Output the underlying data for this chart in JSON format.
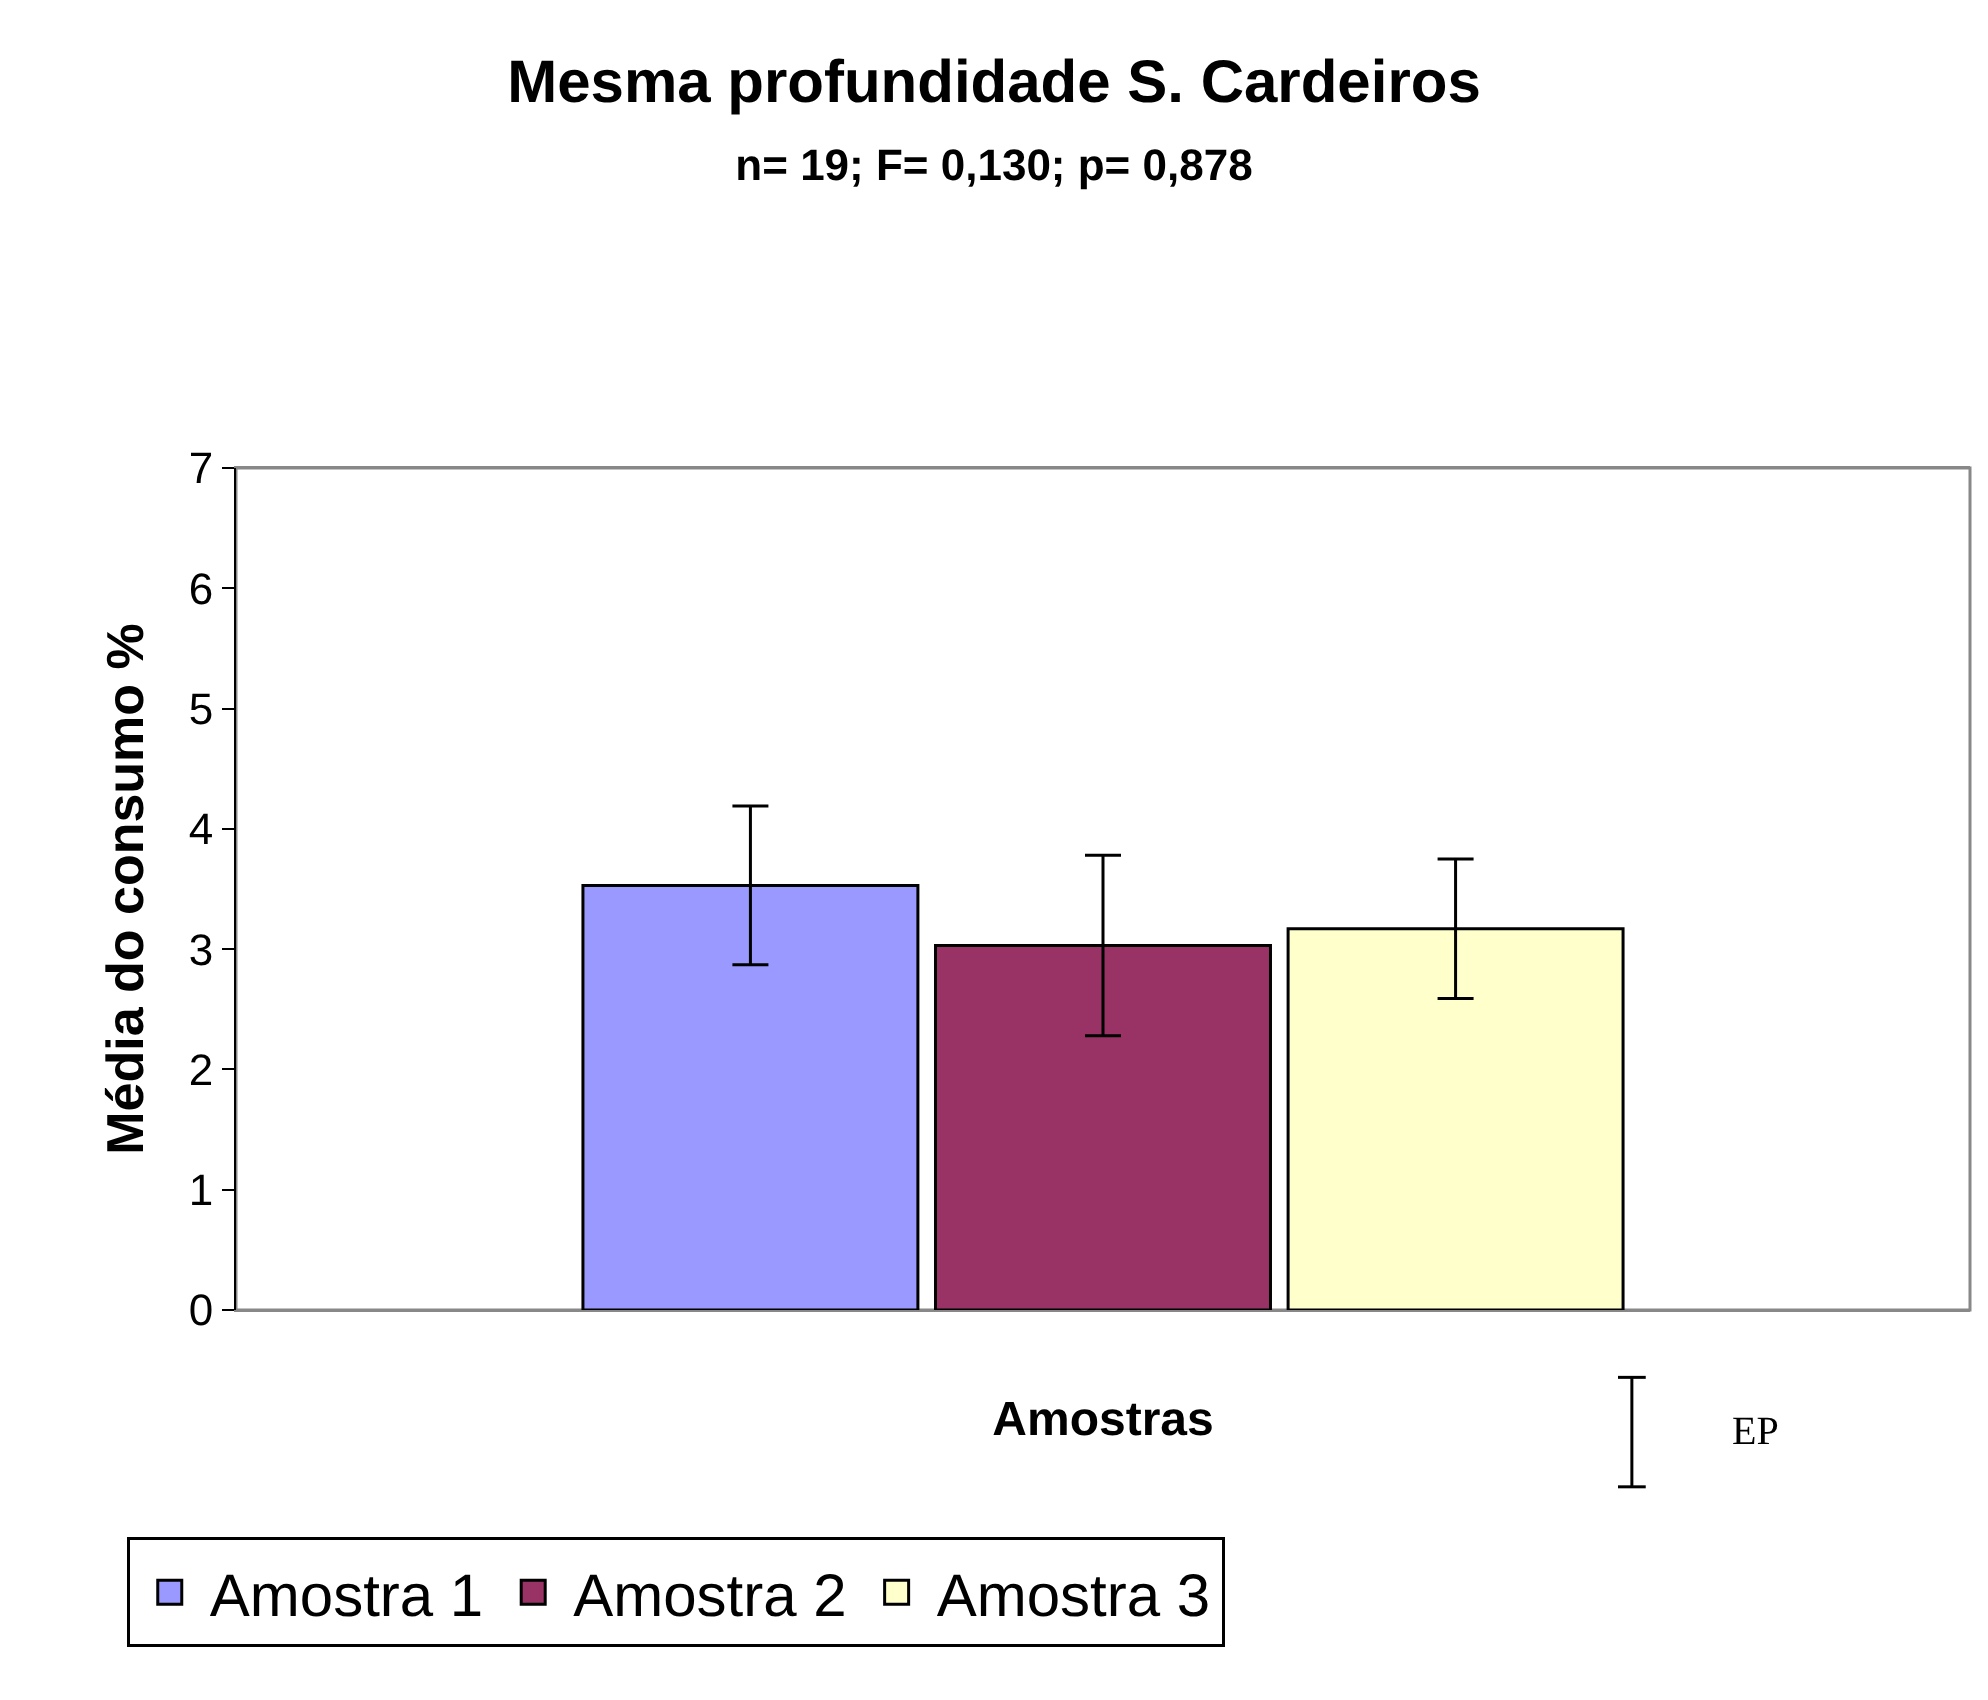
{
  "chart_data": {
    "type": "bar",
    "title": "Mesma profundidade S. Cardeiros",
    "subtitle": "n= 19; F= 0,130; p= 0,878",
    "xlabel": "Amostras",
    "ylabel": "Média do consumo %",
    "categories": [
      null
    ],
    "series": [
      {
        "name": "Amostra 1",
        "color": "#9999ff",
        "values": [
          3.53
        ],
        "errors": [
          0.66
        ]
      },
      {
        "name": "Amostra 2",
        "color": "#993366",
        "values": [
          3.03
        ],
        "errors": [
          0.75
        ]
      },
      {
        "name": "Amostra 3",
        "color": "#ffffcc",
        "values": [
          3.17
        ],
        "errors": [
          0.58
        ]
      }
    ],
    "ylim": [
      0,
      7
    ],
    "yticks": [
      0,
      1,
      2,
      3,
      4,
      5,
      6,
      7
    ],
    "grid": false,
    "legend": "bottom left",
    "tick_labels": "y",
    "annotations": [
      "EP"
    ]
  }
}
